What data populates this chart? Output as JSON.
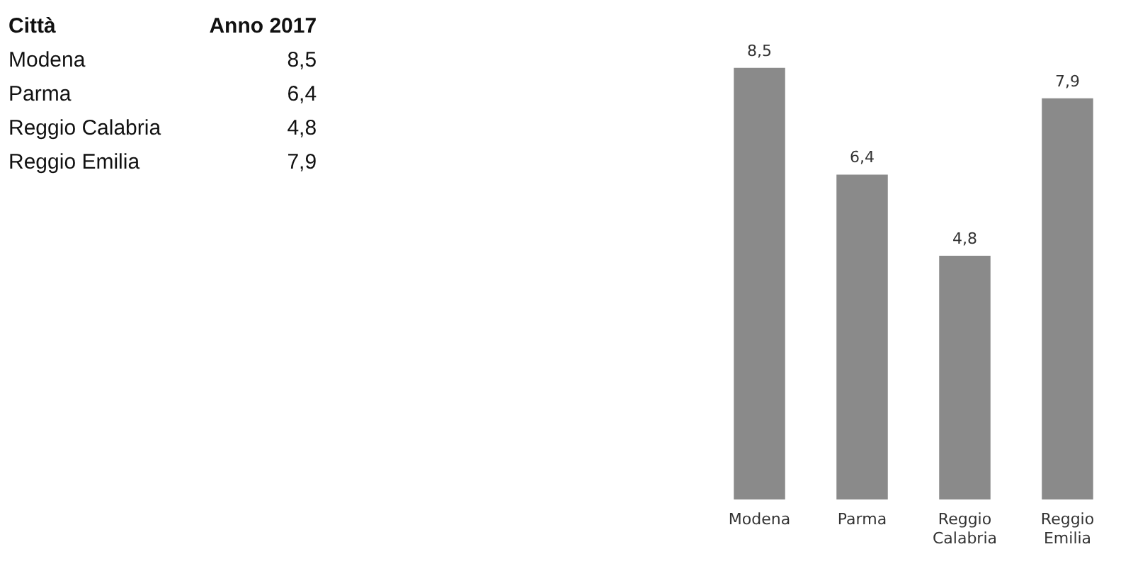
{
  "chart_data": {
    "type": "bar",
    "annotations": [
      "Città"
    ],
    "categories": [
      "Modena",
      "Parma",
      "Reggio Calabria",
      "Reggio Emilia"
    ],
    "series": [
      {
        "name": "Anno 2017",
        "color": "#8a8a8a",
        "values": [
          8.5,
          6.4,
          4.8,
          7.9
        ],
        "value_labels": [
          "8,5",
          "6,4",
          "4,8",
          "7,9"
        ]
      }
    ],
    "legend": false,
    "grid": false
  }
}
